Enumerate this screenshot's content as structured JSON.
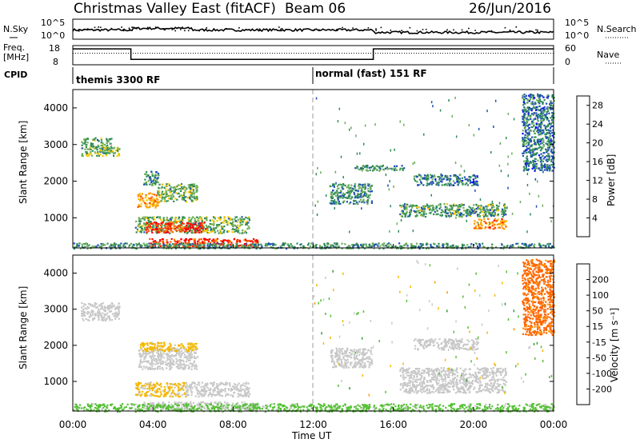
{
  "header": {
    "title": "Christmas Valley East (fitACF)",
    "beam": "Beam 06",
    "date": "26/Jun/2016"
  },
  "panels": {
    "nsky_label": "N.Sky",
    "nsearch_label": "N.Search",
    "freq_label_1": "Freq.",
    "freq_label_2": "[MHz]",
    "nave_label": "Nave",
    "cpid_label": "CPID",
    "nsky_ticks": [
      "10^5",
      "10^0"
    ],
    "nsearch_ticks": [
      "10^5",
      "10^0"
    ],
    "freq_ticks": [
      "18",
      "8"
    ],
    "nave_ticks": [
      "60",
      "0"
    ],
    "cpid_segments": [
      {
        "label": "themis 3300 RF",
        "start_hour": 0,
        "end_hour": 12
      },
      {
        "label": "normal (fast) 151 RF",
        "start_hour": 12,
        "end_hour": 24
      }
    ]
  },
  "chart_data": [
    {
      "type": "line",
      "name": "frequency-panel",
      "series": [
        {
          "quantity": "Freq. [MHz]",
          "x_hours": [
            0,
            2.9,
            2.9,
            15,
            15,
            24
          ],
          "values": [
            16.3,
            16.3,
            10.8,
            10.8,
            16.3,
            16.3
          ]
        },
        {
          "quantity": "Nave",
          "x_hours": [
            0,
            24
          ],
          "values": [
            36,
            36
          ]
        }
      ],
      "ylim_freq": [
        8,
        18
      ],
      "ylim_nave": [
        0,
        60
      ]
    },
    {
      "type": "heatmap",
      "name": "power",
      "ylabel": "Slant Range [km]",
      "xlim_hours": [
        0,
        24
      ],
      "ylim_km": [
        180,
        4500
      ],
      "yticks": [
        1000,
        2000,
        3000,
        4000
      ],
      "colorbar": {
        "label": "Power [dB]",
        "ticks": [
          4,
          8,
          12,
          16,
          20,
          24,
          28
        ],
        "range": [
          0,
          30
        ],
        "colors": [
          "#0000ff",
          "#1f50b4",
          "#2e8b57",
          "#6cae5a",
          "#f5c800",
          "#ff9900",
          "#ff5500",
          "#ff0000"
        ]
      },
      "regions": [
        {
          "t0": 0.4,
          "t1": 1.9,
          "r0": 2700,
          "r1": 3200,
          "level": 12
        },
        {
          "t0": 1.6,
          "t1": 2.3,
          "r0": 2700,
          "r1": 2950,
          "level": 14
        },
        {
          "t0": 3.2,
          "t1": 4.3,
          "r0": 1300,
          "r1": 1700,
          "level": 20
        },
        {
          "t0": 4.2,
          "t1": 6.2,
          "r0": 1450,
          "r1": 1950,
          "level": 12
        },
        {
          "t0": 3.5,
          "t1": 4.3,
          "r0": 1900,
          "r1": 2300,
          "level": 10
        },
        {
          "t0": 3.1,
          "t1": 8.8,
          "r0": 600,
          "r1": 1050,
          "level": 12
        },
        {
          "t0": 3.6,
          "t1": 6.6,
          "r0": 620,
          "r1": 900,
          "level": 27
        },
        {
          "t0": 3.8,
          "t1": 9.2,
          "r0": 220,
          "r1": 450,
          "level": 26
        },
        {
          "t0": 0,
          "t1": 24,
          "r0": 180,
          "r1": 330,
          "level": 10
        },
        {
          "t0": 12.8,
          "t1": 14.9,
          "r0": 1400,
          "r1": 1950,
          "level": 10
        },
        {
          "t0": 16.3,
          "t1": 21.6,
          "r0": 1050,
          "r1": 1400,
          "level": 11
        },
        {
          "t0": 20.0,
          "t1": 21.6,
          "r0": 720,
          "r1": 1000,
          "level": 22
        },
        {
          "t0": 17.0,
          "t1": 20.2,
          "r0": 1900,
          "r1": 2200,
          "level": 8
        },
        {
          "t0": 14.0,
          "t1": 16.5,
          "r0": 2300,
          "r1": 2450,
          "level": 10
        },
        {
          "t0": 22.4,
          "t1": 24,
          "r0": 2300,
          "r1": 4400,
          "level": 8
        }
      ]
    },
    {
      "type": "heatmap",
      "name": "velocity",
      "xlabel": "Time UT",
      "ylabel": "Slant Range [km]",
      "xlim_hours": [
        0,
        24
      ],
      "xticks": [
        "00:00",
        "04:00",
        "08:00",
        "12:00",
        "16:00",
        "20:00",
        "00:00"
      ],
      "ylim_km": [
        180,
        4500
      ],
      "yticks": [
        1000,
        2000,
        3000,
        4000
      ],
      "colorbar": {
        "label": "Velocity [m s⁻¹]",
        "ticks": [
          200,
          100,
          50,
          15,
          -15,
          -50,
          -100,
          -200
        ],
        "range": [
          -250,
          250
        ],
        "colors": [
          "#ff0000",
          "#ff6600",
          "#ff9900",
          "#f5b800",
          "#c8c8c8",
          "#55c035",
          "#2f9d2f",
          "#1f50b4",
          "#0000ff"
        ]
      },
      "regions": [
        {
          "t0": 0.4,
          "t1": 2.3,
          "r0": 2700,
          "r1": 3200,
          "level": 0
        },
        {
          "t0": 3.2,
          "t1": 6.2,
          "r0": 1350,
          "r1": 1950,
          "level": 0
        },
        {
          "t0": 3.3,
          "t1": 6.2,
          "r0": 1850,
          "r1": 2100,
          "level": 40
        },
        {
          "t0": 3.1,
          "t1": 5.6,
          "r0": 600,
          "r1": 1000,
          "level": 35
        },
        {
          "t0": 5.6,
          "t1": 8.8,
          "r0": 600,
          "r1": 1000,
          "level": 0
        },
        {
          "t0": 3.5,
          "t1": 9.2,
          "r0": 230,
          "r1": 450,
          "level": 0
        },
        {
          "t0": 0,
          "t1": 24,
          "r0": 180,
          "r1": 400,
          "level": -40
        },
        {
          "t0": 12.8,
          "t1": 14.9,
          "r0": 1400,
          "r1": 1950,
          "level": 0
        },
        {
          "t0": 16.3,
          "t1": 21.6,
          "r0": 700,
          "r1": 1400,
          "level": 0
        },
        {
          "t0": 17.0,
          "t1": 20.2,
          "r0": 1900,
          "r1": 2200,
          "level": 0
        },
        {
          "t0": 22.4,
          "t1": 24,
          "r0": 2300,
          "r1": 4400,
          "level": 150
        }
      ]
    }
  ]
}
